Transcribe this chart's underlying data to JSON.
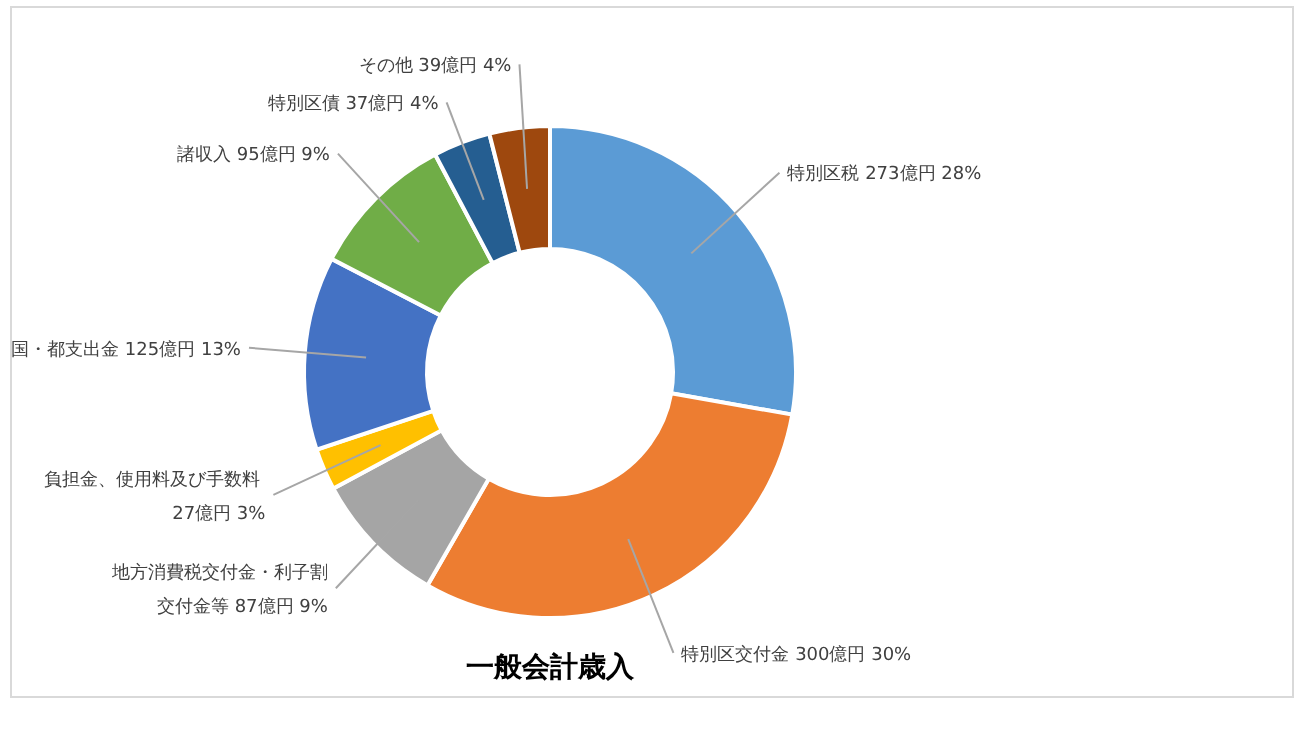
{
  "chart_data": {
    "type": "donut",
    "title": "一般会計歳入",
    "categories": [
      "特別区税",
      "特別区交付金",
      "地方消費税交付金・利子割交付金等",
      "負担金、使用料及び手数料",
      "国・都支出金",
      "諸収入",
      "特別区債",
      "その他"
    ],
    "values": [
      273,
      300,
      87,
      27,
      125,
      95,
      37,
      39
    ],
    "value_labels": [
      "273億円 28%",
      "300億円 30%",
      "87億円 9%",
      "27億円 3%",
      "125億円 13%",
      "95億円 9%",
      "37億円 4%",
      "39億円 4%"
    ],
    "colors": [
      "#5b9bd5",
      "#ed7d31",
      "#a5a5a5",
      "#ffc000",
      "#4472c4",
      "#70ad47",
      "#255e91",
      "#9e480e"
    ]
  }
}
